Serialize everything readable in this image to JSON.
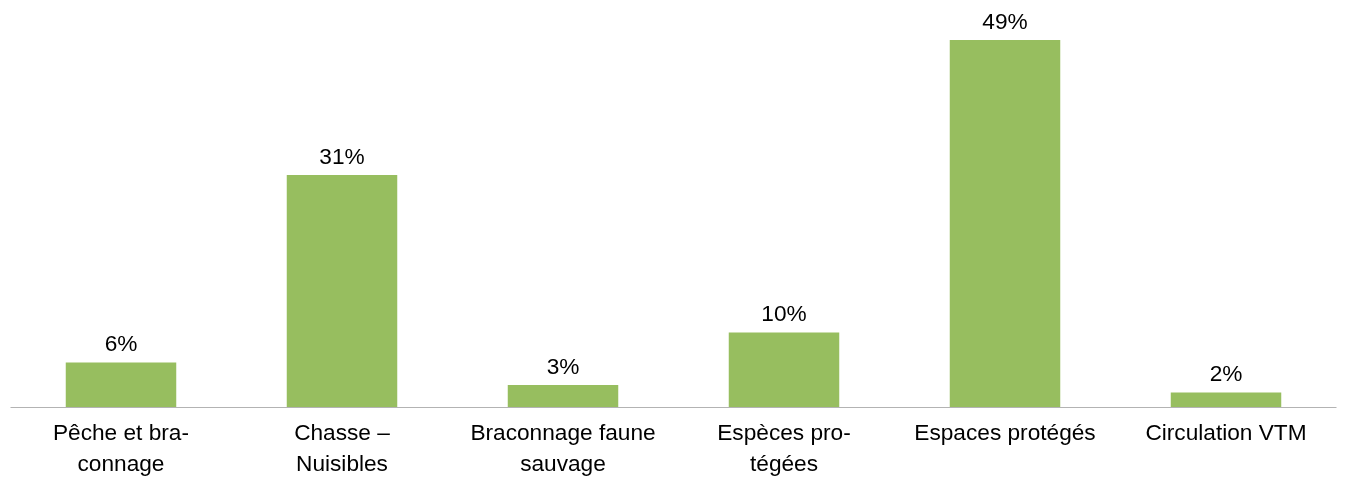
{
  "chart_data": {
    "type": "bar",
    "categories": [
      "Pêche et bra-\nconnage",
      "Chasse –\nNuisibles",
      "Braconnage faune\nsauvage",
      "Espèces pro-\ntégées",
      "Espaces protégés",
      "Circulation VTM"
    ],
    "values": [
      6,
      31,
      3,
      10,
      49,
      2
    ],
    "value_labels": [
      "6%",
      "31%",
      "3%",
      "10%",
      "49%",
      "2%"
    ],
    "color": "#97be5f"
  }
}
